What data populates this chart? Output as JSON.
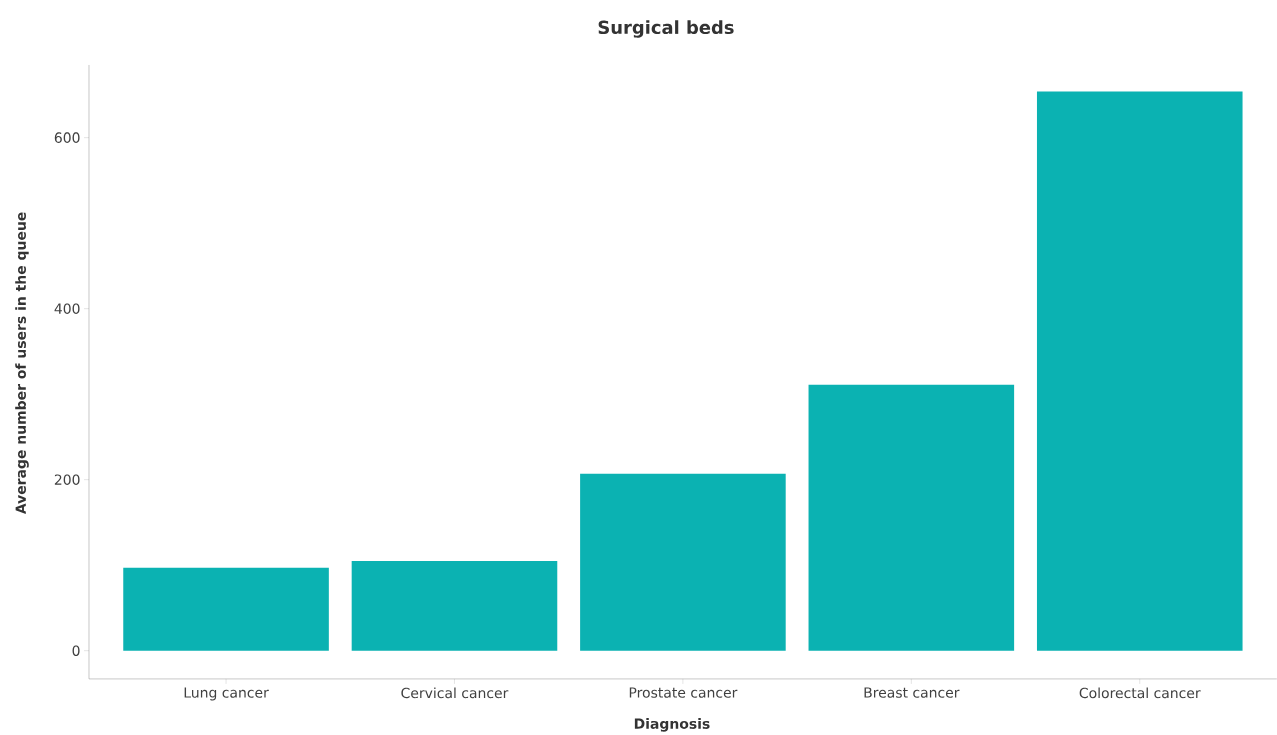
{
  "chart_data": {
    "type": "bar",
    "title": "Surgical beds",
    "xlabel": "Diagnosis",
    "ylabel": "Average number of users in the queue",
    "categories": [
      "Lung cancer",
      "Cervical cancer",
      "Prostate cancer",
      "Breast cancer",
      "Colorectal cancer"
    ],
    "values": [
      97,
      105,
      207,
      311,
      654
    ],
    "color": "#0bb2b2",
    "ylim": [
      -33,
      685
    ],
    "yticks": [
      0,
      200,
      400,
      600
    ],
    "grid": false
  }
}
